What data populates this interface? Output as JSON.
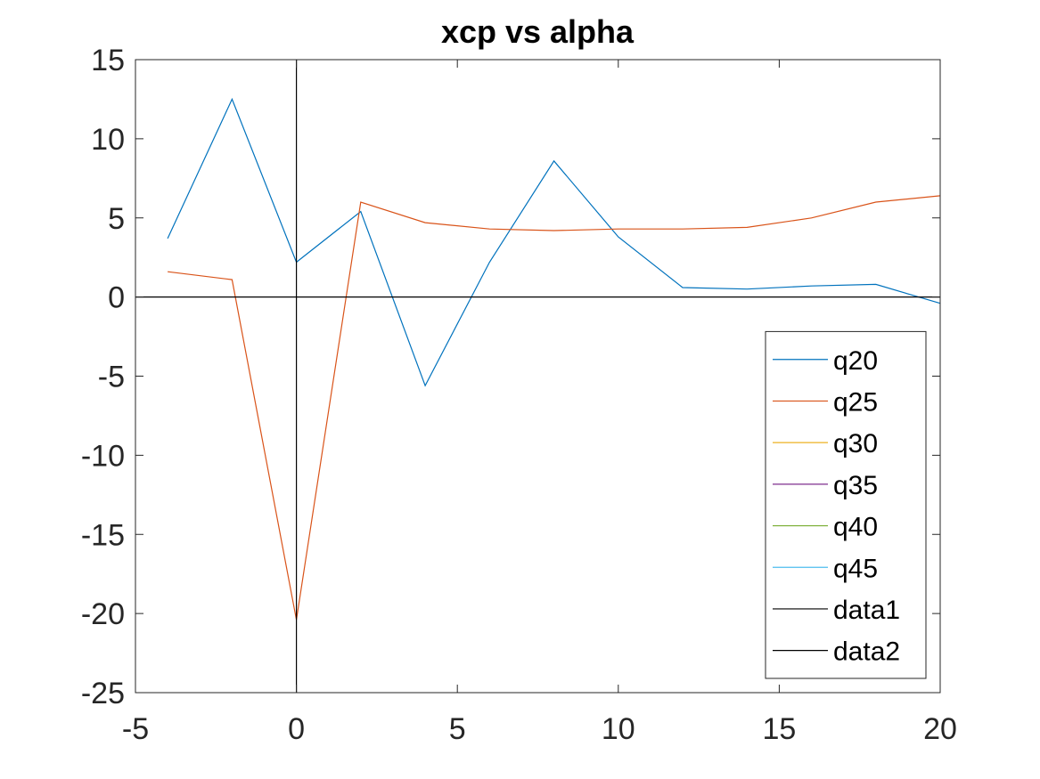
{
  "chart_data": {
    "type": "line",
    "title": "xcp vs alpha",
    "xlabel": "",
    "ylabel": "",
    "xlim": [
      -5,
      20
    ],
    "ylim": [
      -25,
      15
    ],
    "xticks": [
      -5,
      0,
      5,
      10,
      15,
      20
    ],
    "xtick_labels": [
      "-5",
      "0",
      "5",
      "10",
      "15",
      "20"
    ],
    "yticks": [
      15,
      10,
      5,
      0,
      -5,
      -10,
      -15,
      -20,
      -25
    ],
    "ytick_labels": [
      "15",
      "10",
      "5",
      "0",
      "-5",
      "-10",
      "-15",
      "-20",
      "-25"
    ],
    "grid": false,
    "legend_position": "bottom-right",
    "series": [
      {
        "name": "q20",
        "color": "#0072BD",
        "x": [
          -4,
          -2,
          0,
          2,
          4,
          6,
          8,
          10,
          12,
          14,
          16,
          18,
          20
        ],
        "y": [
          3.7,
          12.5,
          2.2,
          5.4,
          -5.6,
          2.2,
          8.6,
          3.8,
          0.6,
          0.5,
          0.7,
          0.8,
          -0.4
        ]
      },
      {
        "name": "q25",
        "color": "#D95319",
        "x": [
          -4,
          -2,
          0,
          2,
          4,
          6,
          8,
          10,
          12,
          14,
          16,
          18,
          20
        ],
        "y": [
          1.6,
          1.1,
          -20.4,
          6.0,
          4.7,
          4.3,
          4.2,
          4.3,
          4.3,
          4.4,
          5.0,
          6.0,
          6.4
        ]
      },
      {
        "name": "q30",
        "color": "#EDB120",
        "x": [],
        "y": []
      },
      {
        "name": "q35",
        "color": "#7E2F8E",
        "x": [],
        "y": []
      },
      {
        "name": "q40",
        "color": "#77AC30",
        "x": [],
        "y": []
      },
      {
        "name": "q45",
        "color": "#4DBEEE",
        "x": [],
        "y": []
      },
      {
        "name": "data1",
        "color": "#000000",
        "x": [
          -5,
          20
        ],
        "y": [
          0,
          0
        ]
      },
      {
        "name": "data2",
        "color": "#000000",
        "x": [
          0,
          0
        ],
        "y": [
          -25,
          15
        ]
      }
    ]
  }
}
